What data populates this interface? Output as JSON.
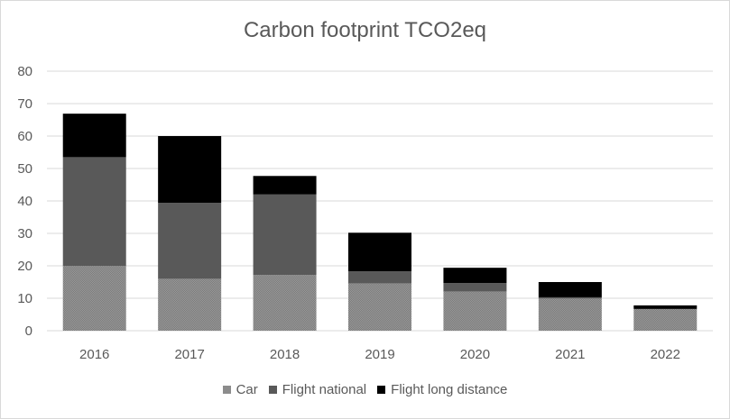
{
  "chart_data": {
    "type": "bar",
    "stacked": true,
    "title": "Carbon footprint TCO2eq",
    "xlabel": "",
    "ylabel": "",
    "ylim": [
      0,
      80
    ],
    "yticks": [
      0,
      10,
      20,
      30,
      40,
      50,
      60,
      70,
      80
    ],
    "grid": true,
    "legend_position": "bottom",
    "categories": [
      "2016",
      "2017",
      "2018",
      "2019",
      "2020",
      "2021",
      "2022"
    ],
    "series": [
      {
        "name": "Car",
        "color": "#8c8c8c",
        "values": [
          20.0,
          16.0,
          17.2,
          14.6,
          12.1,
          9.9,
          6.7
        ]
      },
      {
        "name": "Flight national",
        "color": "#595959",
        "values": [
          33.5,
          23.4,
          24.8,
          3.7,
          2.6,
          0.4,
          0
        ]
      },
      {
        "name": "Flight long distance",
        "color": "#000000",
        "values": [
          13.4,
          20.6,
          5.7,
          11.9,
          4.7,
          4.7,
          1.1
        ]
      }
    ]
  }
}
